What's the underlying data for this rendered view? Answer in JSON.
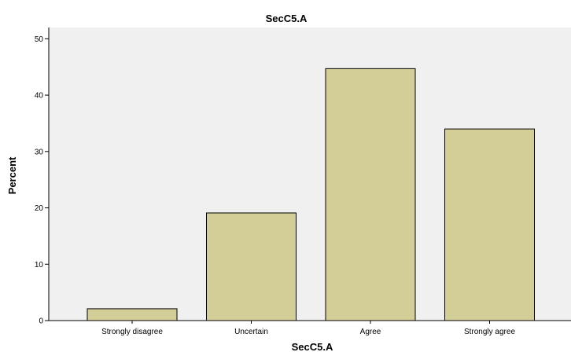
{
  "chart_data": {
    "type": "bar",
    "title": "SecC5.A",
    "xlabel": "SecC5.A",
    "ylabel": "Percent",
    "categories": [
      "Strongly disagree",
      "Uncertain",
      "Agree",
      "Strongly agree"
    ],
    "values": [
      2.1,
      19.1,
      44.7,
      34.0
    ],
    "ylim": [
      0,
      52
    ],
    "yticks": [
      0,
      10,
      20,
      30,
      40,
      50
    ],
    "grid": false,
    "legend": "none",
    "colors": {
      "bar_fill": "#D3CE97",
      "bar_stroke": "#000000",
      "plot_background": "#F0F0F0",
      "page_background": "#FFFFFF"
    }
  }
}
